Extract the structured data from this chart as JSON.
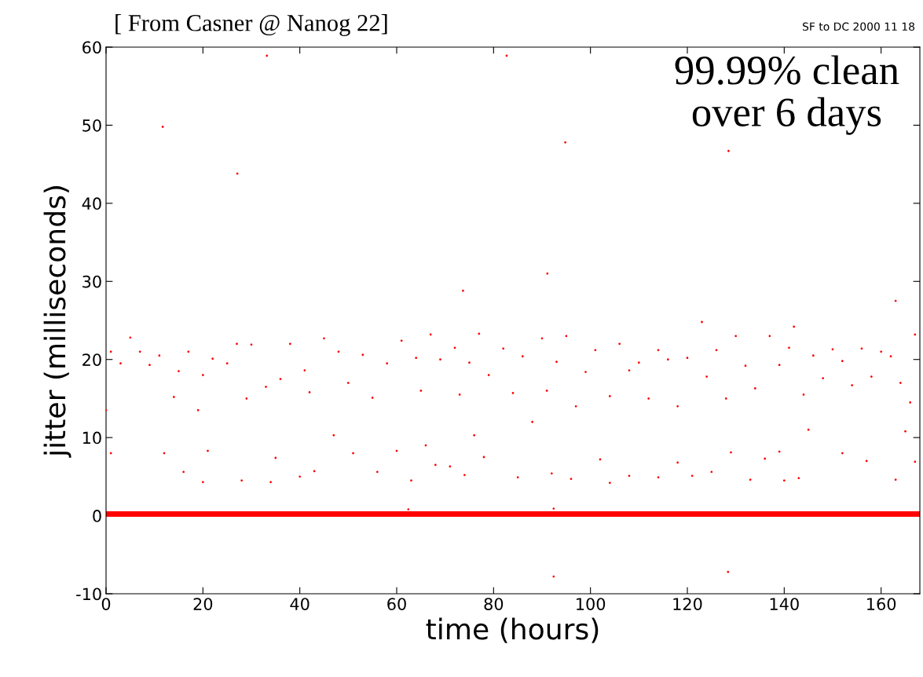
{
  "chart_data": {
    "type": "scatter",
    "title": "[ From Casner @ Nanog 22]",
    "xlabel": "time (hours)",
    "ylabel": "jitter (milliseconds)",
    "annotations": [
      "SF to DC 2000 11 18",
      "99.99% clean\nover 6 days"
    ],
    "xlim": [
      0,
      168
    ],
    "xticks": [
      0,
      20,
      40,
      60,
      80,
      100,
      120,
      140,
      160
    ],
    "ylim": [
      -10,
      60
    ],
    "yticks": [
      -10,
      0,
      10,
      20,
      30,
      40,
      50,
      60
    ],
    "grid": false,
    "legend": false,
    "series": [
      {
        "marker": "circle",
        "color": "#ff0000",
        "x": [
          1,
          12,
          16,
          20,
          21,
          28,
          34,
          35,
          40,
          43,
          47,
          51,
          56,
          60,
          63,
          66,
          68,
          71,
          74,
          76,
          78,
          85,
          92,
          96,
          102,
          104,
          108,
          114,
          118,
          121,
          125,
          129,
          133,
          136,
          139,
          140,
          143,
          145,
          152,
          157,
          163,
          165,
          167,
          0,
          1,
          3,
          5,
          7,
          9,
          11,
          14,
          15,
          17,
          19,
          20,
          22,
          25,
          27,
          29,
          30,
          33,
          36,
          38,
          41,
          42,
          45,
          48,
          50,
          53,
          55,
          58,
          61,
          64,
          65,
          67,
          69,
          72,
          73,
          75,
          77,
          79,
          82,
          84,
          86,
          88,
          90,
          91,
          93,
          95,
          97,
          99,
          101,
          104,
          106,
          108,
          110,
          112,
          114,
          116,
          118,
          120,
          123,
          124,
          126,
          128,
          130,
          132,
          134,
          137,
          139,
          141,
          142,
          144,
          146,
          148,
          150,
          152,
          154,
          156,
          158,
          160,
          162,
          164,
          166,
          167,
          11.7,
          27.1,
          33.2,
          82.7,
          94.8,
          128.5,
          91.1,
          73.7,
          163,
          92.4,
          128.4,
          92.4,
          62.4
        ],
        "values": [
          8,
          8,
          5.6,
          4.3,
          8.3,
          4.5,
          4.3,
          7.4,
          5,
          5.7,
          10.3,
          8,
          5.6,
          8.3,
          4.5,
          9,
          6.5,
          6.3,
          5.2,
          10.3,
          7.5,
          4.9,
          5.4,
          4.7,
          7.2,
          4.2,
          5.1,
          4.9,
          6.8,
          5.1,
          5.6,
          8.1,
          4.6,
          7.3,
          8.2,
          4.5,
          4.8,
          11,
          8,
          7,
          4.6,
          10.8,
          6.9,
          13.5,
          21,
          19.5,
          22.8,
          21,
          19.3,
          20.5,
          15.2,
          18.5,
          21,
          13.5,
          18,
          20.1,
          19.5,
          22,
          15,
          21.9,
          16.5,
          17.5,
          22,
          18.6,
          15.8,
          22.7,
          21,
          17,
          20.6,
          15.1,
          19.5,
          22.4,
          20.2,
          16,
          23.2,
          20,
          21.5,
          15.5,
          19.6,
          23.3,
          18,
          21.4,
          15.7,
          20.4,
          12,
          22.7,
          16,
          19.7,
          23,
          14,
          18.4,
          21.2,
          15.3,
          22,
          18.6,
          19.6,
          15,
          21.2,
          20,
          14,
          20.2,
          24.8,
          17.8,
          21.2,
          15,
          23,
          19.2,
          16.3,
          23,
          19.3,
          21.5,
          24.2,
          15.5,
          20.5,
          17.6,
          21.3,
          19.8,
          16.7,
          21.4,
          17.8,
          21,
          20.4,
          17,
          14.5,
          23.2,
          49.8,
          43.8,
          58.9,
          58.9,
          47.8,
          46.7,
          31,
          28.8,
          27.5,
          -7.8,
          -7.2,
          0.9,
          0.8
        ]
      },
      {
        "type": "line",
        "color": "#ff0000",
        "x": [
          0,
          168
        ],
        "values": [
          0.2,
          0.2
        ]
      }
    ]
  }
}
